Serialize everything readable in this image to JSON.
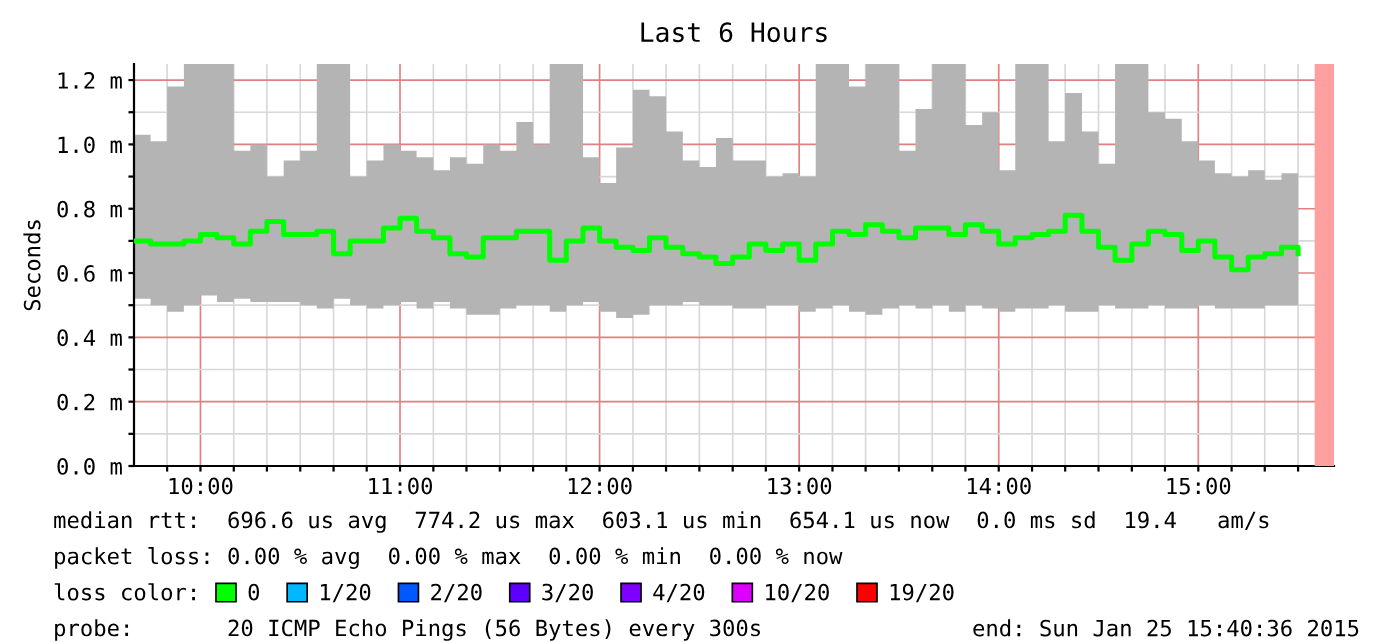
{
  "chart_data": {
    "type": "step",
    "title": "Last 6 Hours",
    "ylabel": "Seconds",
    "xlim": [
      9.667,
      15.68
    ],
    "ylim": [
      0,
      1.25
    ],
    "xticks": [
      {
        "value": 9.833,
        "label": null
      },
      {
        "value": 10,
        "label": "10:00"
      },
      {
        "value": 10.167,
        "label": null
      },
      {
        "value": 10.333,
        "label": null
      },
      {
        "value": 10.5,
        "label": null
      },
      {
        "value": 10.667,
        "label": null
      },
      {
        "value": 10.833,
        "label": null
      },
      {
        "value": 11,
        "label": "11:00"
      },
      {
        "value": 11.167,
        "label": null
      },
      {
        "value": 11.333,
        "label": null
      },
      {
        "value": 11.5,
        "label": null
      },
      {
        "value": 11.667,
        "label": null
      },
      {
        "value": 11.833,
        "label": null
      },
      {
        "value": 12,
        "label": "12:00"
      },
      {
        "value": 12.167,
        "label": null
      },
      {
        "value": 12.333,
        "label": null
      },
      {
        "value": 12.5,
        "label": null
      },
      {
        "value": 12.667,
        "label": null
      },
      {
        "value": 12.833,
        "label": null
      },
      {
        "value": 13,
        "label": "13:00"
      },
      {
        "value": 13.167,
        "label": null
      },
      {
        "value": 13.333,
        "label": null
      },
      {
        "value": 13.5,
        "label": null
      },
      {
        "value": 13.667,
        "label": null
      },
      {
        "value": 13.833,
        "label": null
      },
      {
        "value": 14,
        "label": "14:00"
      },
      {
        "value": 14.167,
        "label": null
      },
      {
        "value": 14.333,
        "label": null
      },
      {
        "value": 14.5,
        "label": null
      },
      {
        "value": 14.667,
        "label": null
      },
      {
        "value": 14.833,
        "label": null
      },
      {
        "value": 15,
        "label": "15:00"
      },
      {
        "value": 15.167,
        "label": null
      },
      {
        "value": 15.333,
        "label": null
      },
      {
        "value": 15.5,
        "label": null
      }
    ],
    "yticks": [
      {
        "value": 0,
        "label": "0.0 m"
      },
      {
        "value": 0.1,
        "label": null
      },
      {
        "value": 0.2,
        "label": "0.2 m"
      },
      {
        "value": 0.3,
        "label": null
      },
      {
        "value": 0.4,
        "label": "0.4 m"
      },
      {
        "value": 0.5,
        "label": null
      },
      {
        "value": 0.6,
        "label": "0.6 m"
      },
      {
        "value": 0.7,
        "label": null
      },
      {
        "value": 0.8,
        "label": "0.8 m"
      },
      {
        "value": 0.9,
        "label": null
      },
      {
        "value": 1.0,
        "label": "1.0 m"
      },
      {
        "value": 1.1,
        "label": null
      },
      {
        "value": 1.2,
        "label": "1.2 m"
      }
    ],
    "grid": true,
    "legend": "bottom",
    "legend_title": "loss color:",
    "x": [
      9.667,
      9.75,
      9.833,
      9.917,
      10,
      10.083,
      10.167,
      10.25,
      10.333,
      10.417,
      10.5,
      10.583,
      10.667,
      10.75,
      10.833,
      10.917,
      11,
      11.083,
      11.167,
      11.25,
      11.333,
      11.417,
      11.5,
      11.583,
      11.667,
      11.75,
      11.833,
      11.917,
      12,
      12.083,
      12.167,
      12.25,
      12.333,
      12.417,
      12.5,
      12.583,
      12.667,
      12.75,
      12.833,
      12.917,
      13,
      13.083,
      13.167,
      13.25,
      13.333,
      13.417,
      13.5,
      13.583,
      13.667,
      13.75,
      13.833,
      13.917,
      14,
      14.083,
      14.167,
      14.25,
      14.333,
      14.417,
      14.5,
      14.583,
      14.667,
      14.75,
      14.833,
      14.917,
      15,
      15.083,
      15.167,
      15.25,
      15.333,
      15.417,
      15.5
    ],
    "series": [
      {
        "name": "0",
        "color": "#00ff00",
        "values": [
          0.7,
          0.69,
          0.69,
          0.7,
          0.72,
          0.71,
          0.69,
          0.73,
          0.76,
          0.72,
          0.72,
          0.73,
          0.66,
          0.7,
          0.7,
          0.74,
          0.77,
          0.73,
          0.71,
          0.66,
          0.65,
          0.71,
          0.71,
          0.73,
          0.73,
          0.64,
          0.7,
          0.74,
          0.7,
          0.68,
          0.67,
          0.71,
          0.68,
          0.66,
          0.65,
          0.63,
          0.65,
          0.69,
          0.67,
          0.69,
          0.64,
          0.69,
          0.73,
          0.72,
          0.75,
          0.73,
          0.71,
          0.74,
          0.74,
          0.72,
          0.75,
          0.73,
          0.69,
          0.71,
          0.72,
          0.73,
          0.78,
          0.73,
          0.68,
          0.64,
          0.69,
          0.73,
          0.72,
          0.67,
          0.7,
          0.65,
          0.61,
          0.65,
          0.66,
          0.68,
          0.66
        ],
        "lower": [
          0.52,
          0.5,
          0.48,
          0.5,
          0.53,
          0.51,
          0.52,
          0.51,
          0.51,
          0.51,
          0.5,
          0.49,
          0.52,
          0.5,
          0.49,
          0.5,
          0.51,
          0.49,
          0.51,
          0.49,
          0.47,
          0.47,
          0.49,
          0.5,
          0.5,
          0.48,
          0.5,
          0.51,
          0.48,
          0.46,
          0.47,
          0.5,
          0.5,
          0.51,
          0.5,
          0.5,
          0.49,
          0.49,
          0.5,
          0.5,
          0.48,
          0.49,
          0.5,
          0.48,
          0.47,
          0.49,
          0.5,
          0.49,
          0.5,
          0.48,
          0.5,
          0.49,
          0.48,
          0.49,
          0.49,
          0.5,
          0.48,
          0.48,
          0.5,
          0.49,
          0.49,
          0.5,
          0.49,
          0.49,
          0.5,
          0.49,
          0.49,
          0.49,
          0.5,
          0.5,
          0.49
        ],
        "upper": [
          1.03,
          1.01,
          1.18,
          1.25,
          1.25,
          1.25,
          0.98,
          1.0,
          0.9,
          0.95,
          0.98,
          1.25,
          1.25,
          0.9,
          0.95,
          1.0,
          0.98,
          0.96,
          0.92,
          0.96,
          0.94,
          1.0,
          0.98,
          1.07,
          1.0,
          1.25,
          1.25,
          0.96,
          0.88,
          0.99,
          1.17,
          1.15,
          1.04,
          0.95,
          0.93,
          1.02,
          0.95,
          0.95,
          0.9,
          0.91,
          0.9,
          1.25,
          1.25,
          1.18,
          1.25,
          1.25,
          0.98,
          1.11,
          1.25,
          1.25,
          1.06,
          1.1,
          0.92,
          1.25,
          1.25,
          1.01,
          1.16,
          1.04,
          0.94,
          1.25,
          1.25,
          1.1,
          1.08,
          1.01,
          0.95,
          0.91,
          0.9,
          0.92,
          0.89,
          0.91,
          0.97
        ]
      },
      {
        "name": "1/20",
        "color": "#00b8ff",
        "values": [
          null,
          null,
          null,
          null,
          null,
          null,
          null,
          null,
          null,
          null,
          null,
          null,
          null,
          null,
          null,
          null,
          null,
          null,
          null,
          null,
          null,
          null,
          null,
          null,
          null,
          null,
          null,
          null,
          null,
          null,
          null,
          null,
          null,
          null,
          null,
          null,
          null,
          null,
          null,
          null,
          null,
          null,
          null,
          null,
          null,
          null,
          null,
          null,
          null,
          null,
          null,
          null,
          null,
          null,
          null,
          null,
          null,
          null,
          null,
          null,
          null,
          null,
          null,
          null,
          null,
          null,
          null,
          null,
          null,
          null,
          null
        ]
      },
      {
        "name": "2/20",
        "color": "#0059ff",
        "values": [
          null,
          null,
          null,
          null,
          null,
          null,
          null,
          null,
          null,
          null,
          null,
          null,
          null,
          null,
          null,
          null,
          null,
          null,
          null,
          null,
          null,
          null,
          null,
          null,
          null,
          null,
          null,
          null,
          null,
          null,
          null,
          null,
          null,
          null,
          null,
          null,
          null,
          null,
          null,
          null,
          null,
          null,
          null,
          null,
          null,
          null,
          null,
          null,
          null,
          null,
          null,
          null,
          null,
          null,
          null,
          null,
          null,
          null,
          null,
          null,
          null,
          null,
          null,
          null,
          null,
          null,
          null,
          null,
          null,
          null,
          null
        ]
      },
      {
        "name": "3/20",
        "color": "#5e00ff",
        "values": [
          null,
          null,
          null,
          null,
          null,
          null,
          null,
          null,
          null,
          null,
          null,
          null,
          null,
          null,
          null,
          null,
          null,
          null,
          null,
          null,
          null,
          null,
          null,
          null,
          null,
          null,
          null,
          null,
          null,
          null,
          null,
          null,
          null,
          null,
          null,
          null,
          null,
          null,
          null,
          null,
          null,
          null,
          null,
          null,
          null,
          null,
          null,
          null,
          null,
          null,
          null,
          null,
          null,
          null,
          null,
          null,
          null,
          null,
          null,
          null,
          null,
          null,
          null,
          null,
          null,
          null,
          null,
          null,
          null,
          null,
          null
        ]
      },
      {
        "name": "4/20",
        "color": "#7e00ff",
        "values": [
          null,
          null,
          null,
          null,
          null,
          null,
          null,
          null,
          null,
          null,
          null,
          null,
          null,
          null,
          null,
          null,
          null,
          null,
          null,
          null,
          null,
          null,
          null,
          null,
          null,
          null,
          null,
          null,
          null,
          null,
          null,
          null,
          null,
          null,
          null,
          null,
          null,
          null,
          null,
          null,
          null,
          null,
          null,
          null,
          null,
          null,
          null,
          null,
          null,
          null,
          null,
          null,
          null,
          null,
          null,
          null,
          null,
          null,
          null,
          null,
          null,
          null,
          null,
          null,
          null,
          null,
          null,
          null,
          null,
          null,
          null
        ]
      },
      {
        "name": "10/20",
        "color": "#dd00ff",
        "values": [
          null,
          null,
          null,
          null,
          null,
          null,
          null,
          null,
          null,
          null,
          null,
          null,
          null,
          null,
          null,
          null,
          null,
          null,
          null,
          null,
          null,
          null,
          null,
          null,
          null,
          null,
          null,
          null,
          null,
          null,
          null,
          null,
          null,
          null,
          null,
          null,
          null,
          null,
          null,
          null,
          null,
          null,
          null,
          null,
          null,
          null,
          null,
          null,
          null,
          null,
          null,
          null,
          null,
          null,
          null,
          null,
          null,
          null,
          null,
          null,
          null,
          null,
          null,
          null,
          null,
          null,
          null,
          null,
          null,
          null,
          null
        ]
      },
      {
        "name": "19/20",
        "color": "#ff0000",
        "values": [
          null,
          null,
          null,
          null,
          null,
          null,
          null,
          null,
          null,
          null,
          null,
          null,
          null,
          null,
          null,
          null,
          null,
          null,
          null,
          null,
          null,
          null,
          null,
          null,
          null,
          null,
          null,
          null,
          null,
          null,
          null,
          null,
          null,
          null,
          null,
          null,
          null,
          null,
          null,
          null,
          null,
          null,
          null,
          null,
          null,
          null,
          null,
          null,
          null,
          null,
          null,
          null,
          null,
          null,
          null,
          null,
          null,
          null,
          null,
          null,
          null,
          null,
          null,
          null,
          null,
          null,
          null,
          null,
          null,
          null,
          null
        ]
      }
    ],
    "bands": [
      {
        "axis": "x",
        "from": 15.583,
        "to": 15.683,
        "color": "#ffa0a0"
      }
    ],
    "annotations": [
      "median rtt:  696.6 us avg  774.2 us max  603.1 us min  654.1 us now  0.0 ms sd  19.4   am/s",
      "packet loss: 0.00 % avg  0.00 % max  0.00 % min  0.00 % now",
      "probe:       20 ICMP Echo Pings (56 Bytes) every 300s",
      "end: Sun Jan 25 15:40:36 2015"
    ]
  }
}
